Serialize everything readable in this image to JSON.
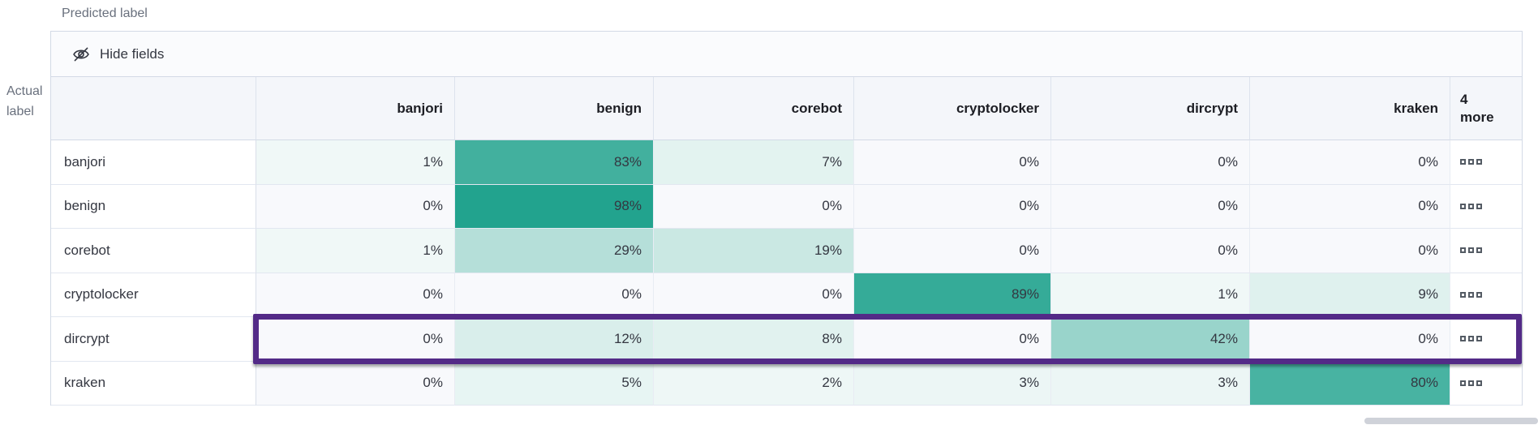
{
  "labels": {
    "predicted": "Predicted label",
    "actual_line1": "Actual",
    "actual_line2": "label"
  },
  "toolbar": {
    "hide_fields": "Hide fields",
    "icon": "eye-closed-icon"
  },
  "chart_data": {
    "type": "heatmap",
    "x_axis_label": "Predicted label",
    "y_axis_label": "Actual label",
    "x_categories": [
      "banjori",
      "benign",
      "corebot",
      "cryptolocker",
      "dircrypt",
      "kraken"
    ],
    "y_categories": [
      "banjori",
      "benign",
      "corebot",
      "cryptolocker",
      "dircrypt",
      "kraken"
    ],
    "matrix": [
      [
        1,
        83,
        7,
        0,
        0,
        0
      ],
      [
        0,
        98,
        0,
        0,
        0,
        0
      ],
      [
        1,
        29,
        19,
        0,
        0,
        0
      ],
      [
        0,
        0,
        0,
        89,
        1,
        9
      ],
      [
        0,
        12,
        8,
        0,
        42,
        0
      ],
      [
        0,
        5,
        2,
        3,
        3,
        80
      ]
    ],
    "value_suffix": "%",
    "overflow_header_line1": "4",
    "overflow_header_line2": "more",
    "overflow_cell_icon": "overflow-cells-icon",
    "highlighted_row": "dircrypt",
    "colorscale": {
      "zero": "#f8f9fc",
      "min": "#f2f9f8",
      "max": "#1ea18c"
    }
  },
  "colors": {
    "highlight_border": "#532a87",
    "header_bg": "#f4f6fa",
    "toolbar_bg": "#fafbfd",
    "border": "#d3dae6",
    "cell_border": "#e8ecf3",
    "text": "#343741",
    "muted_text": "#69707d",
    "scrollbar": "#cfd2d9"
  }
}
